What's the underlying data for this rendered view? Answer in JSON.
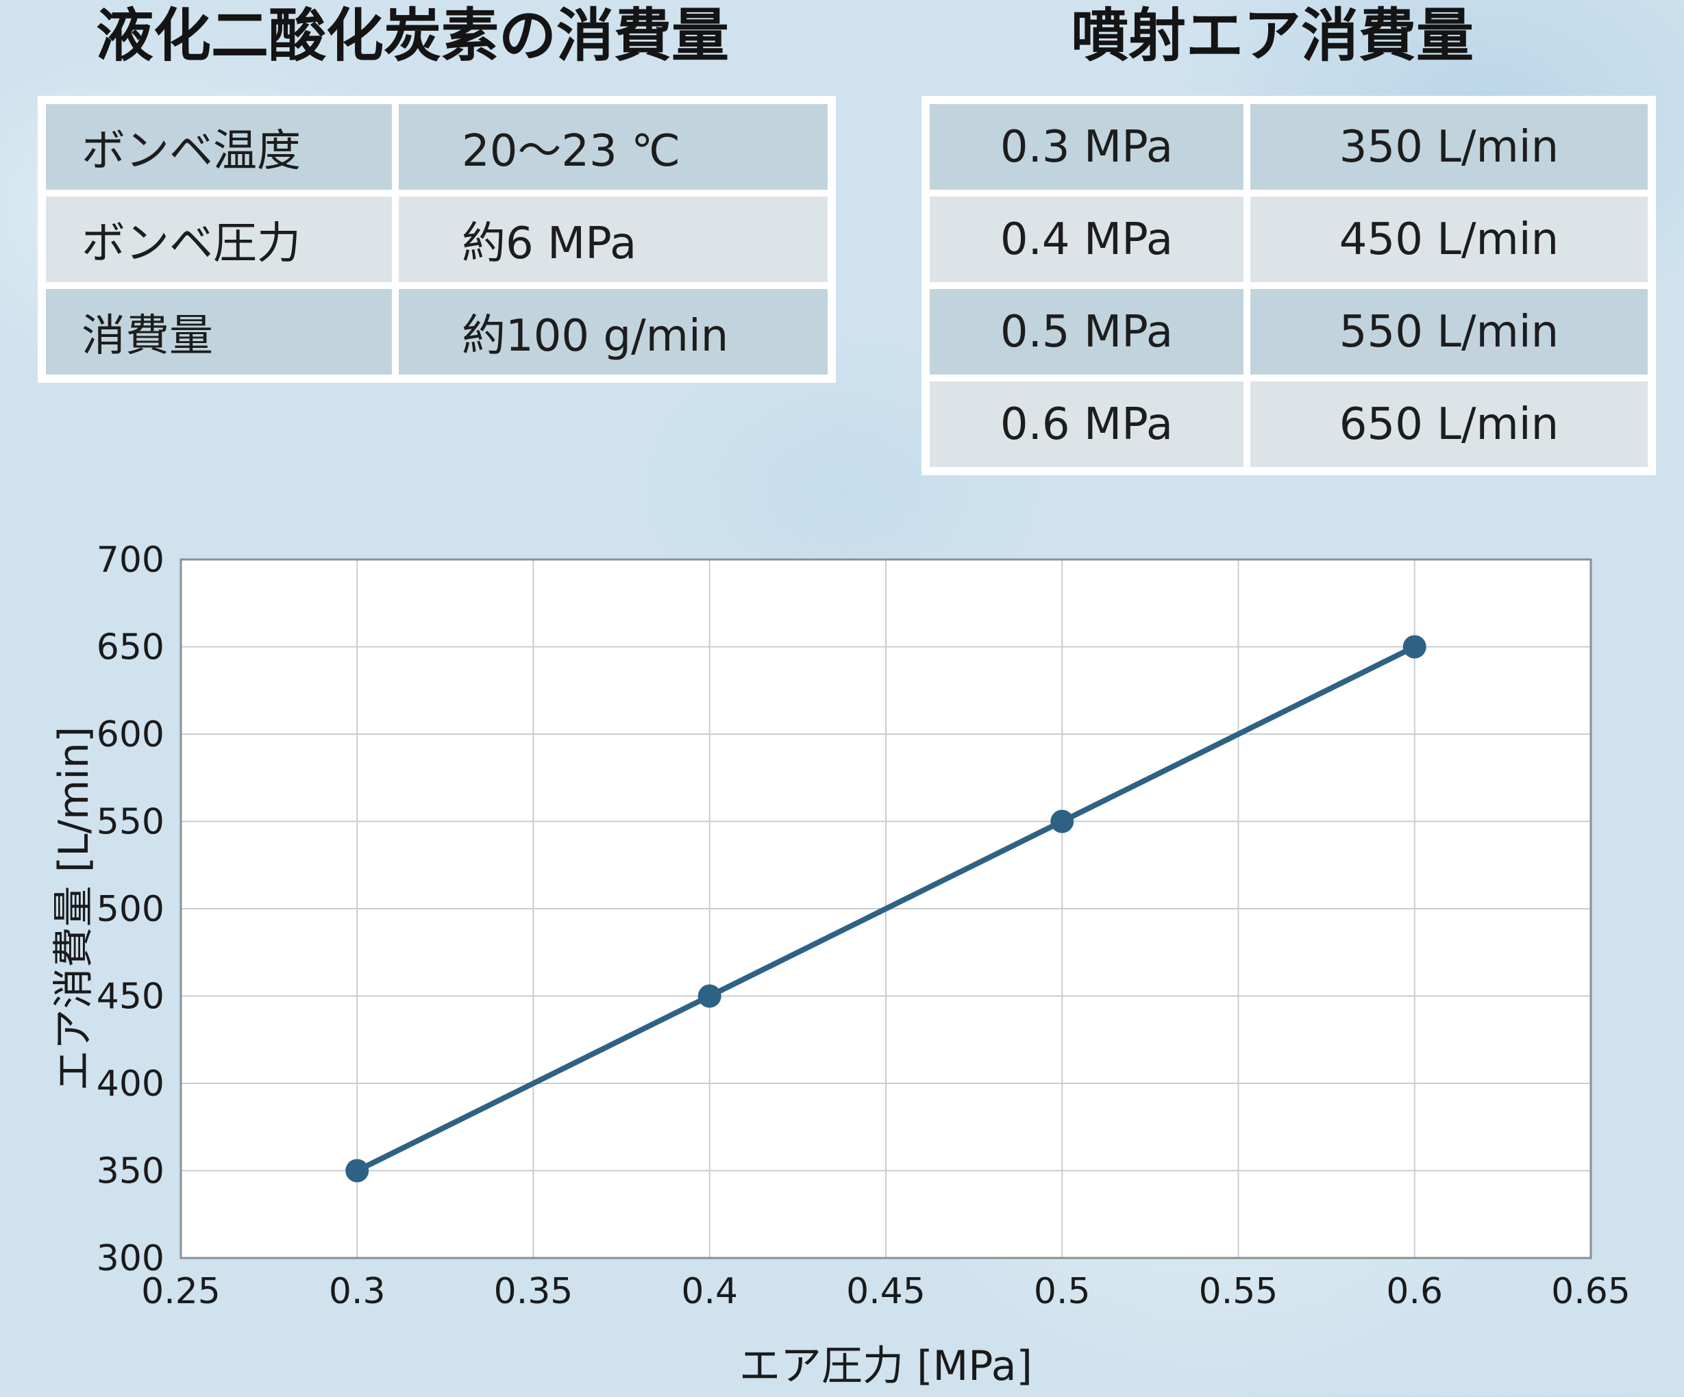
{
  "co2_table": {
    "title": "液化二酸化炭素の消費量",
    "rows": [
      {
        "label": "ボンベ温度",
        "value": "20〜23 ℃"
      },
      {
        "label": "ボンベ圧力",
        "value": "約6 MPa"
      },
      {
        "label": "消費量",
        "value": "約100 g/min"
      }
    ]
  },
  "air_table": {
    "title": "噴射エア消費量",
    "rows": [
      {
        "pressure": "0.3 MPa",
        "flow": "350 L/min"
      },
      {
        "pressure": "0.4 MPa",
        "flow": "450 L/min"
      },
      {
        "pressure": "0.5 MPa",
        "flow": "550 L/min"
      },
      {
        "pressure": "0.6 MPa",
        "flow": "650 L/min"
      }
    ]
  },
  "chart_data": {
    "type": "line",
    "x": [
      0.3,
      0.4,
      0.5,
      0.6
    ],
    "y": [
      350,
      450,
      550,
      650
    ],
    "series_name": "エア消費量",
    "xlabel": "エア圧力 [MPa]",
    "ylabel": "エア消費量 [L/min]",
    "xlim": [
      0.25,
      0.65
    ],
    "ylim": [
      300,
      700
    ],
    "xticks": [
      0.25,
      0.3,
      0.35,
      0.4,
      0.45,
      0.5,
      0.55,
      0.6,
      0.65
    ],
    "xtick_labels": [
      "0.25",
      "0.3",
      "0.35",
      "0.4",
      "0.45",
      "0.5",
      "0.55",
      "0.6",
      "0.65"
    ],
    "yticks": [
      300,
      350,
      400,
      450,
      500,
      550,
      600,
      650,
      700
    ],
    "ytick_labels": [
      "300",
      "350",
      "400",
      "450",
      "500",
      "550",
      "600",
      "650",
      "700"
    ],
    "grid": true,
    "legend": "none",
    "colors": {
      "line": "#2e6284",
      "marker": "#2e6284",
      "grid": "#c9cdd1",
      "plot_border": "#8a8f94",
      "plot_bg": "#ffffff",
      "text": "#1a1a1a"
    }
  }
}
